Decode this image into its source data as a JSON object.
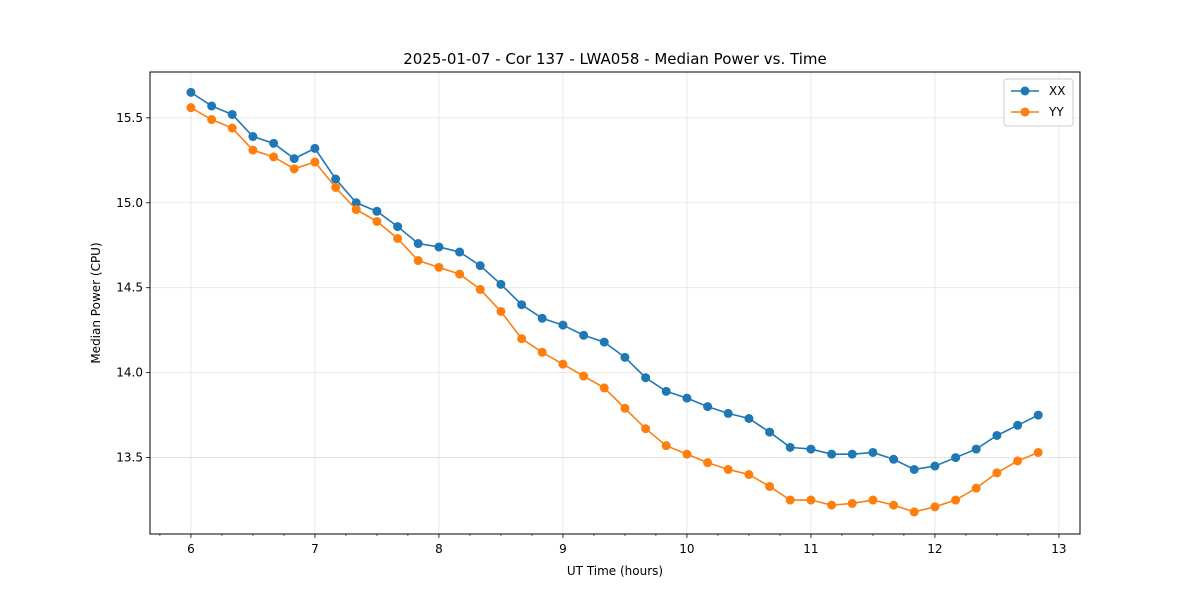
{
  "chart_data": {
    "type": "line",
    "title": "2025-01-07 - Cor 137 - LWA058 - Median Power vs. Time",
    "xlabel": "UT Time (hours)",
    "ylabel": "Median Power (CPU)",
    "xlim": [
      5.67,
      13.17
    ],
    "ylim": [
      13.05,
      15.77
    ],
    "xticks": [
      6,
      7,
      8,
      9,
      10,
      11,
      12,
      13
    ],
    "xtick_labels": [
      "6",
      "7",
      "8",
      "9",
      "10",
      "11",
      "12",
      "13"
    ],
    "yticks": [
      13.5,
      14.0,
      14.5,
      15.0,
      15.5
    ],
    "ytick_labels": [
      "13.5",
      "14.0",
      "14.5",
      "15.0",
      "15.5"
    ],
    "grid": true,
    "legend_position": "top-right",
    "x": [
      6.0,
      6.167,
      6.333,
      6.5,
      6.667,
      6.833,
      7.0,
      7.167,
      7.333,
      7.5,
      7.667,
      7.833,
      8.0,
      8.167,
      8.333,
      8.5,
      8.667,
      8.833,
      9.0,
      9.167,
      9.333,
      9.5,
      9.667,
      9.833,
      10.0,
      10.167,
      10.333,
      10.5,
      10.667,
      10.833,
      11.0,
      11.167,
      11.333,
      11.5,
      11.667,
      11.833,
      12.0,
      12.167,
      12.333,
      12.5,
      12.667,
      12.833
    ],
    "series": [
      {
        "name": "XX",
        "color": "#1f77b4",
        "values": [
          15.65,
          15.57,
          15.52,
          15.39,
          15.35,
          15.26,
          15.32,
          15.14,
          15.0,
          14.95,
          14.86,
          14.76,
          14.74,
          14.71,
          14.63,
          14.52,
          14.4,
          14.32,
          14.28,
          14.22,
          14.18,
          14.09,
          13.97,
          13.89,
          13.85,
          13.8,
          13.76,
          13.73,
          13.65,
          13.56,
          13.55,
          13.52,
          13.52,
          13.53,
          13.49,
          13.43,
          13.45,
          13.5,
          13.55,
          13.63,
          13.69,
          13.75
        ]
      },
      {
        "name": "YY",
        "color": "#ff7f0e",
        "values": [
          15.56,
          15.49,
          15.44,
          15.31,
          15.27,
          15.2,
          15.24,
          15.09,
          14.96,
          14.89,
          14.79,
          14.66,
          14.62,
          14.58,
          14.49,
          14.36,
          14.2,
          14.12,
          14.05,
          13.98,
          13.91,
          13.79,
          13.67,
          13.57,
          13.52,
          13.47,
          13.43,
          13.4,
          13.33,
          13.25,
          13.25,
          13.22,
          13.23,
          13.25,
          13.22,
          13.18,
          13.21,
          13.25,
          13.32,
          13.41,
          13.48,
          13.53
        ]
      }
    ]
  }
}
